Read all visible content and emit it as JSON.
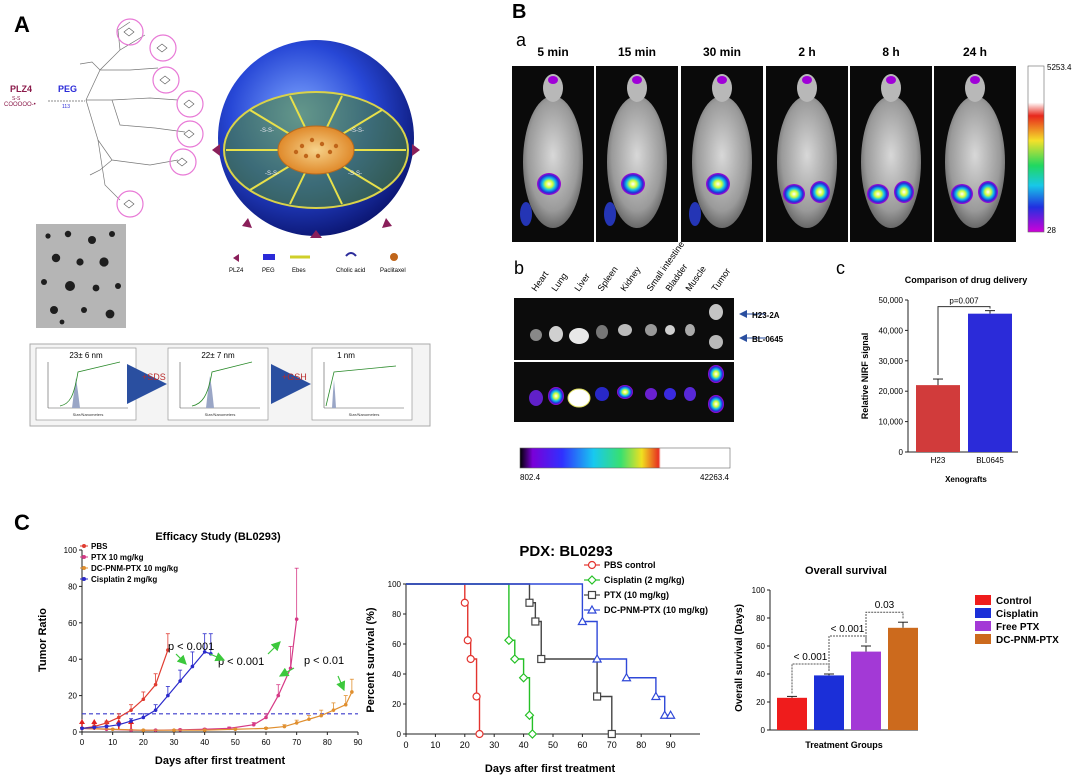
{
  "figure": {
    "panel_labels": {
      "A": "A",
      "B": "B",
      "C": "C"
    },
    "A": {
      "chem": {
        "plz4": "PLZ4",
        "peg": "PEG",
        "ss": "S-S",
        "mid_label": "COOOOO-•",
        "sub_label": "113"
      },
      "legend": [
        "PLZ4",
        "PEG",
        "Ebes",
        "Cholic acid",
        "Paclitaxel"
      ],
      "dls": [
        {
          "size_label": "23± 6 nm"
        },
        {
          "size_label": "22± 7 nm"
        },
        {
          "size_label": "1 nm"
        }
      ],
      "arrows": [
        "+SDS",
        "+GSH"
      ],
      "dls_axis": "Size/Nanometers"
    },
    "B": {
      "sub_a": "a",
      "timepoints": [
        "5 min",
        "15 min",
        "30 min",
        "2 h",
        "8 h",
        "24 h"
      ],
      "scale_max": "5253.4",
      "scale_min": "28",
      "sub_b": "b",
      "organs": [
        "Heart",
        "Lung",
        "Liver",
        "Spleen",
        "Kidney",
        "Small intestine",
        "Bladder",
        "Muscle",
        "Tumor"
      ],
      "tumor_labels": [
        "H23-2A",
        "BL-0645"
      ],
      "bar_min": "802.4",
      "bar_max": "42263.4",
      "sub_c": "c"
    },
    "C": {
      "efficacy_title": "Efficacy Study (BL0293)",
      "efficacy_ylabel": "Tumor Ratio",
      "efficacy_xlabel": "Days after first treatment",
      "pvals": [
        "p < 0.001",
        "p < 0.001",
        "p < 0.01"
      ],
      "km_title": "PDX: BL0293",
      "km_ylabel": "Percent survival (%)",
      "km_xlabel": "Days after first treatment"
    }
  },
  "chart_data": [
    {
      "id": "nirf",
      "type": "bar",
      "title": "Comparison of drug delivery",
      "ylabel": "Relative NIRF signal",
      "xlabel": "Xenografts",
      "categories": [
        "H23",
        "BL0645"
      ],
      "values": [
        22000,
        45500
      ],
      "errors": [
        2000,
        1000
      ],
      "colors": [
        "#d13b3b",
        "#2b2bd9"
      ],
      "ylim": [
        0,
        50000
      ],
      "yticks": [
        0,
        10000,
        20000,
        30000,
        40000,
        50000
      ],
      "annotation": "p=0.007"
    },
    {
      "id": "efficacy",
      "type": "line",
      "xlim": [
        0,
        90
      ],
      "ylim": [
        0,
        100
      ],
      "xticks": [
        0,
        10,
        20,
        30,
        40,
        50,
        60,
        70,
        80,
        90
      ],
      "yticks": [
        0,
        20,
        40,
        60,
        80,
        100
      ],
      "baseline": 10,
      "treatment_days": [
        0,
        4,
        8,
        12,
        16
      ],
      "series": [
        {
          "name": "PBS",
          "color": "#e03c31",
          "x": [
            0,
            4,
            8,
            12,
            16,
            20,
            24,
            28
          ],
          "y": [
            2,
            3,
            5,
            8,
            12,
            18,
            26,
            45
          ],
          "err": [
            0.5,
            0.8,
            1,
            2,
            3,
            4,
            6,
            9
          ]
        },
        {
          "name": "PTX 10 mg/kg",
          "color": "#d63a86",
          "x": [
            0,
            8,
            16,
            24,
            32,
            40,
            48,
            56,
            60,
            64,
            68,
            70
          ],
          "y": [
            2,
            1.5,
            1,
            1,
            1.2,
            1.5,
            2,
            4,
            8,
            20,
            35,
            62
          ],
          "err": [
            0.3,
            0.3,
            0.3,
            0.3,
            0.4,
            0.5,
            0.7,
            1.2,
            2,
            6,
            12,
            28
          ]
        },
        {
          "name": "DC-PNM-PTX 10 mg/kg",
          "color": "#e08f2f",
          "x": [
            0,
            10,
            20,
            30,
            40,
            50,
            60,
            66,
            70,
            74,
            78,
            82,
            86,
            88
          ],
          "y": [
            2,
            1.5,
            1,
            1,
            1,
            1.5,
            2,
            3,
            5,
            7,
            9,
            12,
            15,
            22
          ],
          "err": [
            0.3,
            0.3,
            0.3,
            0.3,
            0.3,
            0.4,
            0.5,
            1,
            1.5,
            2,
            3,
            4,
            5,
            7
          ]
        },
        {
          "name": "Cisplatin 2 mg/kg",
          "color": "#2a2acb",
          "x": [
            0,
            4,
            8,
            12,
            16,
            20,
            24,
            28,
            32,
            36,
            40,
            42
          ],
          "y": [
            2,
            2.5,
            3,
            4,
            6,
            8,
            12,
            20,
            28,
            36,
            44,
            43
          ],
          "err": [
            0.4,
            0.5,
            0.7,
            1,
            1.3,
            2,
            3,
            5,
            6,
            8,
            10,
            11
          ]
        }
      ]
    },
    {
      "id": "km",
      "type": "line",
      "xlim": [
        0,
        100
      ],
      "ylim": [
        0,
        100
      ],
      "xticks": [
        0,
        10,
        20,
        30,
        40,
        50,
        60,
        70,
        80,
        90
      ],
      "yticks": [
        0,
        20,
        40,
        60,
        80,
        100
      ],
      "series": [
        {
          "name": "PBS control",
          "color": "#e3342f",
          "marker": "circle",
          "x": [
            0,
            20,
            21,
            22,
            24,
            25
          ],
          "y": [
            100,
            87.5,
            62.5,
            50,
            25,
            0
          ]
        },
        {
          "name": "Cisplatin (2 mg/kg)",
          "color": "#25c026",
          "marker": "diamond",
          "x": [
            0,
            35,
            37,
            40,
            42,
            43
          ],
          "y": [
            100,
            62.5,
            50,
            37.5,
            12.5,
            0
          ]
        },
        {
          "name": "PTX (10 mg/kg)",
          "color": "#444444",
          "marker": "square",
          "x": [
            0,
            42,
            44,
            46,
            65,
            70
          ],
          "y": [
            100,
            87.5,
            75,
            50,
            25,
            0
          ]
        },
        {
          "name": "DC-PNM-PTX (10 mg/kg)",
          "color": "#2f48d8",
          "marker": "triangle",
          "x": [
            0,
            60,
            65,
            75,
            85,
            88,
            90
          ],
          "y": [
            100,
            75,
            50,
            37.5,
            25,
            12.5,
            12.5
          ]
        }
      ]
    },
    {
      "id": "overall",
      "type": "bar",
      "title": "Overall survival",
      "ylabel": "Overall survival (Days)",
      "xlabel": "Treatment Groups",
      "categories": [
        "Control",
        "Cisplatin",
        "Free PTX",
        "DC-PNM-PTX"
      ],
      "values": [
        23,
        39,
        56,
        73
      ],
      "errors": [
        1,
        1,
        4,
        4
      ],
      "colors": [
        "#ef1c1c",
        "#1b2fd8",
        "#a339d6",
        "#cc6a1d"
      ],
      "ylim": [
        0,
        100
      ],
      "yticks": [
        0,
        20,
        40,
        60,
        80,
        100
      ],
      "comparisons": [
        "< 0.001",
        "< 0.001",
        "0.03"
      ]
    }
  ]
}
